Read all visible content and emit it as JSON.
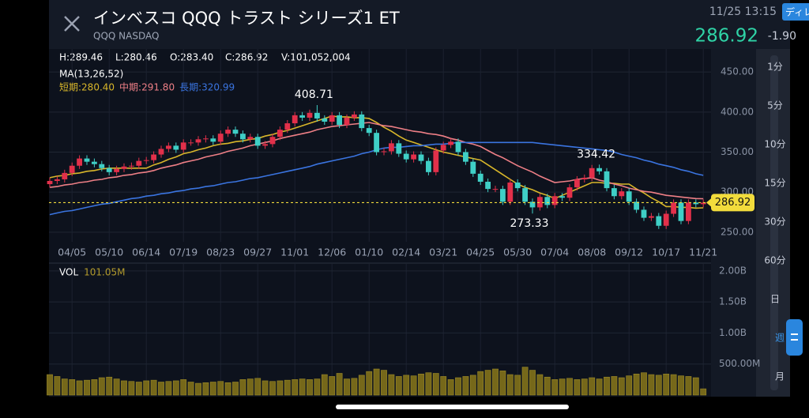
{
  "header": {
    "title": "インベスコ QQQ トラスト シリーズ1 ET",
    "subtitle": "QQQ NASDAQ",
    "datetime": "11/25 13:15",
    "price": "286.92",
    "change": "-1.90",
    "tab": "ディレ"
  },
  "quote": [
    "H:289.46",
    "L:280.46",
    "O:283.40",
    "C:286.92",
    "V:101,052,004"
  ],
  "timeframes": [
    "1分",
    "5分",
    "10分",
    "15分",
    "30分",
    "60分",
    "日",
    "週",
    "月"
  ],
  "chart_data": [
    {
      "type": "candlestick",
      "title": "MA(13,26,52)",
      "categories": [
        null,
        null,
        null,
        "04/05",
        null,
        null,
        null,
        null,
        "05/10",
        null,
        null,
        null,
        null,
        "06/14",
        null,
        null,
        null,
        null,
        "07/19",
        null,
        null,
        null,
        null,
        "08/23",
        null,
        null,
        null,
        null,
        "09/27",
        null,
        null,
        null,
        null,
        "11/01",
        null,
        null,
        null,
        null,
        "12/06",
        null,
        null,
        null,
        null,
        "01/10",
        null,
        null,
        null,
        null,
        "02/14",
        null,
        null,
        null,
        null,
        "03/21",
        null,
        null,
        null,
        null,
        "04/25",
        null,
        null,
        null,
        null,
        "05/30",
        null,
        null,
        null,
        null,
        "07/04",
        null,
        null,
        null,
        null,
        "08/08",
        null,
        null,
        null,
        null,
        "09/12",
        null,
        null,
        null,
        null,
        "10/17",
        null,
        null,
        null,
        null,
        "11/21"
      ],
      "open": [
        310,
        314,
        316,
        324,
        333,
        342,
        338,
        335,
        330,
        325,
        329,
        332,
        333,
        339,
        340,
        347,
        354,
        358,
        353,
        362,
        362,
        366,
        367,
        363,
        373,
        378,
        373,
        366,
        369,
        358,
        360,
        369,
        378,
        386,
        396,
        393,
        399,
        392,
        388,
        396,
        384,
        393,
        397,
        380,
        374,
        350,
        351,
        361,
        348,
        341,
        347,
        339,
        325,
        352,
        359,
        363,
        350,
        338,
        323,
        313,
        304,
        304,
        288,
        312,
        305,
        288,
        281,
        294,
        284,
        295,
        293,
        306,
        316,
        318,
        330,
        326,
        305,
        295,
        301,
        288,
        278,
        268,
        270,
        258,
        273,
        287,
        264,
        287,
        285
      ],
      "high": [
        318,
        320,
        328,
        337,
        346,
        346,
        342,
        339,
        334,
        333,
        336,
        337,
        343,
        344,
        351,
        358,
        362,
        362,
        366,
        366,
        370,
        371,
        371,
        377,
        382,
        382,
        377,
        373,
        373,
        364,
        373,
        382,
        390,
        400,
        400,
        403,
        408.71,
        396,
        400,
        400,
        397,
        401,
        401,
        384,
        378,
        355,
        365,
        365,
        352,
        351,
        351,
        343,
        356,
        363,
        367,
        367,
        354,
        342,
        327,
        317,
        308,
        308,
        316,
        316,
        309,
        292,
        298,
        298,
        299,
        299,
        310,
        320,
        322,
        334,
        334.42,
        330,
        309,
        305,
        305,
        292,
        282,
        274,
        274,
        277,
        291,
        291,
        291,
        291,
        291
      ],
      "low": [
        306,
        310,
        312,
        320,
        329,
        334,
        331,
        326,
        321,
        321,
        325,
        328,
        329,
        335,
        336,
        343,
        350,
        349,
        349,
        358,
        358,
        362,
        359,
        359,
        369,
        369,
        362,
        362,
        354,
        354,
        356,
        365,
        374,
        382,
        389,
        389,
        388,
        384,
        384,
        380,
        380,
        389,
        376,
        370,
        346,
        346,
        347,
        344,
        337,
        337,
        335,
        321,
        321,
        348,
        355,
        346,
        334,
        319,
        309,
        300,
        300,
        284,
        284,
        301,
        284,
        273.33,
        277,
        280,
        280,
        289,
        289,
        302,
        312,
        314,
        322,
        301,
        291,
        291,
        284,
        274,
        264,
        264,
        254,
        254,
        269,
        260,
        260,
        281,
        281
      ],
      "close": [
        314,
        316,
        324,
        333,
        342,
        338,
        335,
        330,
        325,
        329,
        332,
        333,
        339,
        340,
        347,
        354,
        358,
        353,
        362,
        362,
        366,
        367,
        363,
        373,
        378,
        373,
        366,
        369,
        358,
        360,
        369,
        378,
        386,
        396,
        393,
        399,
        392,
        388,
        396,
        384,
        393,
        397,
        380,
        374,
        350,
        351,
        361,
        348,
        341,
        347,
        339,
        325,
        352,
        359,
        363,
        350,
        338,
        323,
        313,
        304,
        304,
        288,
        312,
        305,
        288,
        281,
        294,
        284,
        295,
        293,
        306,
        316,
        318,
        330,
        326,
        305,
        295,
        301,
        288,
        278,
        268,
        270,
        258,
        273,
        287,
        264,
        287,
        285,
        286.92
      ],
      "up_color": "#e2304a",
      "down_color": "#3fcfc6",
      "last_color": "#f2dc3c",
      "series": [
        {
          "name": "短期:280.40",
          "color": "#d8b62a",
          "values": [
            318,
            320,
            321,
            323,
            324,
            326,
            327,
            329,
            330,
            330,
            330,
            330,
            330,
            330,
            334,
            337,
            341,
            344,
            348,
            350,
            353,
            355,
            358,
            360,
            361,
            363,
            364,
            366,
            367,
            370,
            372,
            375,
            377,
            380,
            383,
            386,
            389,
            392,
            395,
            394,
            394,
            393,
            393,
            392,
            387,
            381,
            376,
            370,
            365,
            362,
            359,
            356,
            353,
            350,
            348,
            346,
            344,
            342,
            340,
            334,
            328,
            322,
            316,
            310,
            306,
            303,
            299,
            296,
            292,
            296,
            300,
            304,
            308,
            312,
            312,
            311,
            311,
            310,
            310,
            304,
            299,
            293,
            288,
            282,
            282,
            281,
            281,
            280,
            280.4
          ]
        },
        {
          "name": "中期:291.80",
          "color": "#ee7f86",
          "values": [
            306,
            307,
            309,
            310,
            312,
            313,
            315,
            316,
            318,
            319,
            321,
            322,
            324,
            325,
            327,
            330,
            332,
            334,
            337,
            339,
            341,
            344,
            346,
            348,
            351,
            353,
            355,
            358,
            360,
            362,
            364,
            367,
            369,
            371,
            373,
            375,
            378,
            380,
            382,
            383,
            384,
            385,
            386,
            387,
            385,
            383,
            382,
            380,
            378,
            376,
            375,
            373,
            372,
            370,
            367,
            365,
            362,
            360,
            357,
            352,
            347,
            343,
            338,
            333,
            329,
            325,
            320,
            316,
            312,
            313,
            314,
            316,
            317,
            318,
            315,
            313,
            310,
            308,
            305,
            303,
            301,
            300,
            298,
            296,
            295,
            294,
            293,
            292,
            291.8
          ]
        },
        {
          "name": "長期:320.99",
          "color": "#3a74e0",
          "values": [
            272,
            274,
            276,
            277,
            279,
            281,
            283,
            285,
            286,
            288,
            290,
            292,
            293,
            295,
            296,
            298,
            299,
            301,
            302,
            304,
            305,
            307,
            308,
            310,
            312,
            313,
            315,
            317,
            318,
            320,
            322,
            324,
            326,
            328,
            330,
            332,
            335,
            337,
            339,
            341,
            343,
            345,
            348,
            350,
            353,
            355,
            356,
            356,
            357,
            358,
            358,
            359,
            360,
            360,
            361,
            362,
            362,
            362,
            362,
            362,
            362,
            362,
            362,
            362,
            362,
            362,
            361,
            360,
            359,
            358,
            357,
            356,
            355,
            354,
            353,
            352,
            350,
            347,
            345,
            343,
            340,
            338,
            335,
            333,
            331,
            328,
            326,
            323,
            320.99
          ]
        }
      ],
      "annotations": [
        408.71,
        334.42,
        273.33
      ],
      "ylim": [
        239,
        461
      ],
      "yticks": [
        {
          "value": 250,
          "label": "250.00"
        },
        {
          "value": 300,
          "label": "300.00"
        },
        {
          "value": 350,
          "label": "350.00"
        },
        {
          "value": 400,
          "label": "400.00"
        },
        {
          "value": 450,
          "label": "450.00"
        }
      ],
      "grid": true
    },
    {
      "type": "bar",
      "title": "VOL",
      "latest": "101.05M",
      "color": "#76681a",
      "values": [
        330,
        300,
        260,
        250,
        230,
        240,
        250,
        280,
        290,
        260,
        230,
        220,
        210,
        230,
        240,
        210,
        220,
        230,
        250,
        210,
        190,
        200,
        210,
        220,
        200,
        210,
        250,
        260,
        270,
        230,
        220,
        230,
        240,
        250,
        260,
        250,
        260,
        330,
        300,
        350,
        260,
        270,
        320,
        380,
        420,
        400,
        330,
        300,
        320,
        310,
        340,
        360,
        350,
        300,
        250,
        280,
        300,
        320,
        380,
        400,
        420,
        390,
        330,
        320,
        450,
        400,
        330,
        290,
        250,
        260,
        270,
        250,
        260,
        280,
        260,
        290,
        300,
        280,
        310,
        340,
        360,
        330,
        320,
        340,
        330,
        310,
        300,
        280,
        101.05
      ],
      "ylim": [
        0,
        2100
      ],
      "yticks": [
        {
          "value": 500,
          "label": "500.00M"
        },
        {
          "value": 1000,
          "label": "1.00B"
        },
        {
          "value": 1500,
          "label": "1.50B"
        },
        {
          "value": 2000,
          "label": "2.00B"
        }
      ],
      "grid": true
    }
  ]
}
